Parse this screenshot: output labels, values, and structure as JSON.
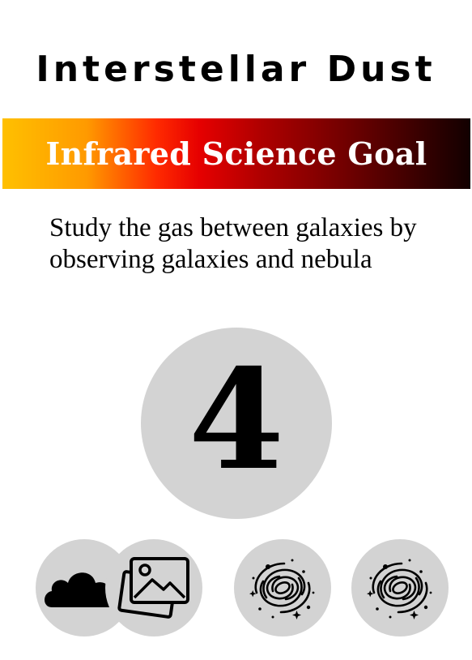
{
  "card": {
    "title": "Interstellar Dust",
    "goal_banner": "Infrared Science Goal",
    "description": "Study the gas between galaxies by observing galaxies and nebula",
    "cost": "4"
  },
  "requirements": [
    {
      "icons": [
        "cloud-icon",
        "image-icon"
      ],
      "meaning": "nebula or image"
    },
    {
      "icons": [
        "galaxy-icon"
      ]
    },
    {
      "icons": [
        "galaxy-icon"
      ]
    }
  ],
  "colors": {
    "banner_start": "#ffc000",
    "banner_mid": "#e60000",
    "banner_end": "#120000",
    "token_gray": "#d3d3d3"
  }
}
